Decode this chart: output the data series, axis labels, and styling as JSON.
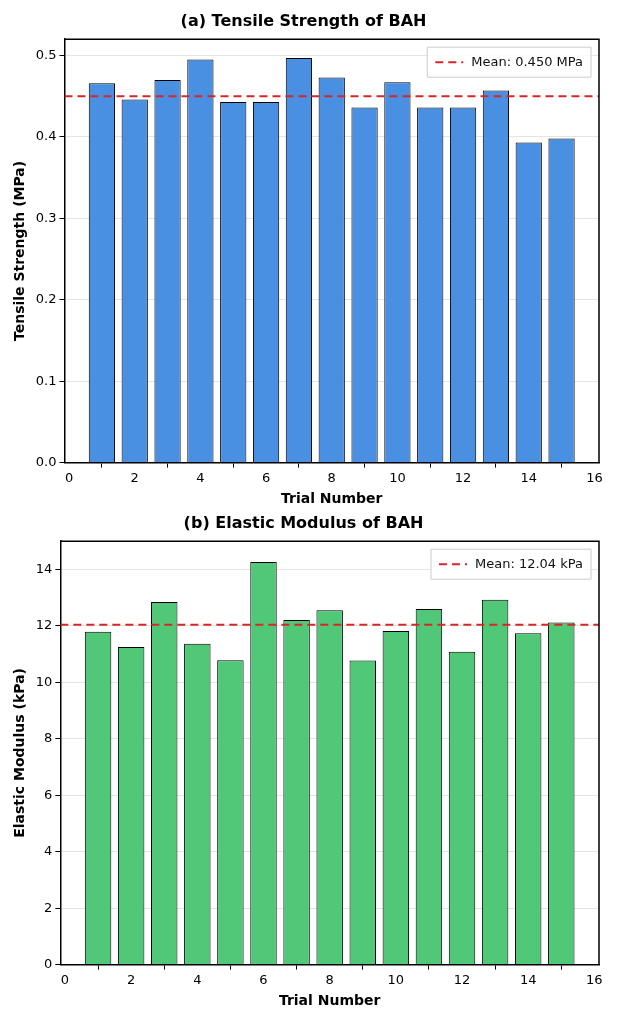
{
  "chart_data": [
    {
      "type": "bar",
      "title": "(a) Tensile Strength of BAH",
      "xlabel": "Trial Number",
      "ylabel": "Tensile Strength (MPa)",
      "x": [
        1,
        2,
        3,
        4,
        5,
        6,
        7,
        8,
        9,
        10,
        11,
        12,
        13,
        14,
        15
      ],
      "values": [
        0.466,
        0.446,
        0.47,
        0.495,
        0.443,
        0.443,
        0.497,
        0.473,
        0.436,
        0.467,
        0.436,
        0.436,
        0.457,
        0.393,
        0.398
      ],
      "color": "#4a90e2",
      "xlim": [
        -0.14,
        16.14
      ],
      "xticks": [
        0,
        2,
        4,
        6,
        8,
        10,
        12,
        14,
        16
      ],
      "ylim": [
        0,
        0.52
      ],
      "yticks": [
        {
          "value": 0,
          "label": "0.0"
        },
        0.1,
        0.2,
        0.3,
        0.4,
        0.5
      ],
      "ref_lines": [
        {
          "axis": "y",
          "value": 0.45,
          "label": "Mean: 0.450 MPa",
          "color": "#d62728",
          "line_style": "dashed"
        }
      ],
      "grid": "y",
      "legend": "top right"
    },
    {
      "type": "bar",
      "title": "(b) Elastic Modulus of BAH",
      "xlabel": "Trial Number",
      "ylabel": "Elastic Modulus (kPa)",
      "x": [
        1,
        2,
        3,
        4,
        5,
        6,
        7,
        8,
        9,
        10,
        11,
        12,
        13,
        14,
        15
      ],
      "values": [
        11.79,
        11.25,
        12.85,
        11.37,
        10.78,
        14.26,
        12.21,
        12.55,
        10.77,
        11.82,
        12.6,
        11.08,
        12.93,
        11.74,
        12.12
      ],
      "color": "#50c878",
      "xlim": [
        -0.14,
        16.14
      ],
      "xticks": [
        0,
        2,
        4,
        6,
        8,
        10,
        12,
        14,
        16
      ],
      "ylim": [
        0,
        15
      ],
      "yticks": [
        0,
        2,
        4,
        6,
        8,
        10,
        12,
        14
      ],
      "ref_lines": [
        {
          "axis": "y",
          "value": 12.04,
          "label": "Mean: 12.04 kPa",
          "color": "#d62728",
          "line_style": "dashed"
        }
      ],
      "grid": "y",
      "legend": "top right"
    }
  ]
}
